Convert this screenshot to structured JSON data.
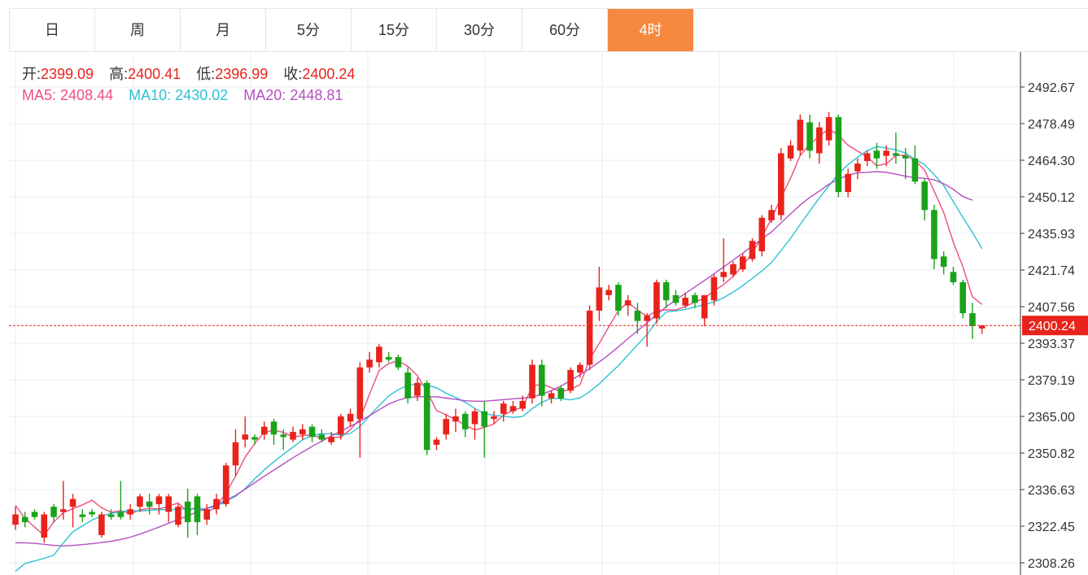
{
  "tabs": [
    {
      "label": "日",
      "active": false
    },
    {
      "label": "周",
      "active": false
    },
    {
      "label": "月",
      "active": false
    },
    {
      "label": "5分",
      "active": false
    },
    {
      "label": "15分",
      "active": false
    },
    {
      "label": "30分",
      "active": false
    },
    {
      "label": "60分",
      "active": false
    },
    {
      "label": "4时",
      "active": true
    }
  ],
  "ohlc": {
    "open_label": "开:",
    "open": "2399.09",
    "high_label": "高:",
    "high": "2400.41",
    "low_label": "低:",
    "low": "2396.99",
    "close_label": "收:",
    "close": "2400.24"
  },
  "ma": {
    "ma5_label": "MA5:",
    "ma5": "2408.44",
    "ma10_label": "MA10:",
    "ma10": "2430.02",
    "ma20_label": "MA20:",
    "ma20": "2448.81"
  },
  "colors": {
    "up": "#e8231b",
    "down": "#1aa31a",
    "ma5": "#ec4f7e",
    "ma10": "#2cc2d3",
    "ma20": "#b54fc2",
    "active_tab": "#f5893f",
    "price_tag": "#e8231b"
  },
  "chart_data": {
    "type": "candlestick",
    "y_ticks": [
      "2492.67",
      "2478.49",
      "2464.30",
      "2450.12",
      "2435.93",
      "2421.74",
      "2407.56",
      "2393.37",
      "2379.19",
      "2365.00",
      "2350.82",
      "2336.63",
      "2322.45",
      "2308.26"
    ],
    "ylim": [
      2304,
      2507
    ],
    "current_price": "2400.24",
    "grid": true,
    "candles": [
      [
        2323,
        2327,
        2321,
        2330
      ],
      [
        2326,
        2324,
        2322,
        2328
      ],
      [
        2328,
        2326,
        2325,
        2329
      ],
      [
        2318,
        2327,
        2316,
        2328
      ],
      [
        2330,
        2326,
        2324,
        2331
      ],
      [
        2328,
        2329,
        2325,
        2340
      ],
      [
        2330,
        2333,
        2322,
        2335
      ],
      [
        2327,
        2326,
        2324,
        2329
      ],
      [
        2328,
        2327,
        2326,
        2329
      ],
      [
        2319,
        2327,
        2318,
        2328
      ],
      [
        2327,
        2326,
        2325,
        2329
      ],
      [
        2328,
        2326,
        2325,
        2340
      ],
      [
        2327,
        2329,
        2325,
        2331
      ],
      [
        2330,
        2334,
        2328,
        2335
      ],
      [
        2332,
        2330,
        2327,
        2335
      ],
      [
        2331,
        2334,
        2327,
        2335
      ],
      [
        2328,
        2334,
        2324,
        2335
      ],
      [
        2323,
        2330,
        2322,
        2331
      ],
      [
        2332,
        2324,
        2318,
        2337
      ],
      [
        2334,
        2324,
        2319,
        2335
      ],
      [
        2325,
        2329,
        2323,
        2331
      ],
      [
        2329,
        2333,
        2327,
        2335
      ],
      [
        2331,
        2346,
        2330,
        2347
      ],
      [
        2346,
        2355,
        2342,
        2360
      ],
      [
        2356,
        2358,
        2353,
        2365
      ],
      [
        2357,
        2356,
        2354,
        2358
      ],
      [
        2358,
        2361,
        2356,
        2363
      ],
      [
        2363,
        2358,
        2354,
        2364
      ],
      [
        2358,
        2357,
        2352,
        2360
      ],
      [
        2356,
        2359,
        2355,
        2361
      ],
      [
        2358,
        2360,
        2356,
        2362
      ],
      [
        2361,
        2357,
        2355,
        2362
      ],
      [
        2358,
        2356,
        2355,
        2360
      ],
      [
        2355,
        2357,
        2354,
        2359
      ],
      [
        2358,
        2365,
        2356,
        2366
      ],
      [
        2363,
        2366,
        2361,
        2368
      ],
      [
        2364,
        2384,
        2349,
        2386
      ],
      [
        2384,
        2387,
        2382,
        2390
      ],
      [
        2386,
        2392,
        2384,
        2393
      ],
      [
        2388,
        2387,
        2386,
        2390
      ],
      [
        2388,
        2384,
        2383,
        2389
      ],
      [
        2382,
        2372,
        2370,
        2384
      ],
      [
        2373,
        2378,
        2371,
        2380
      ],
      [
        2378,
        2352,
        2350,
        2379
      ],
      [
        2354,
        2356,
        2352,
        2357
      ],
      [
        2358,
        2364,
        2356,
        2366
      ],
      [
        2363,
        2365,
        2359,
        2368
      ],
      [
        2366,
        2360,
        2357,
        2367
      ],
      [
        2362,
        2367,
        2356,
        2368
      ],
      [
        2367,
        2361,
        2349,
        2371
      ],
      [
        2364,
        2365,
        2362,
        2367
      ],
      [
        2366,
        2370,
        2363,
        2371
      ],
      [
        2367,
        2369,
        2366,
        2371
      ],
      [
        2368,
        2371,
        2367,
        2373
      ],
      [
        2372,
        2385,
        2370,
        2387
      ],
      [
        2385,
        2373,
        2369,
        2387
      ],
      [
        2372,
        2374,
        2370,
        2375
      ],
      [
        2376,
        2372,
        2371,
        2377
      ],
      [
        2375,
        2383,
        2374,
        2384
      ],
      [
        2382,
        2385,
        2380,
        2386
      ],
      [
        2385,
        2406,
        2383,
        2408
      ],
      [
        2406,
        2415,
        2402,
        2423
      ],
      [
        2412,
        2414,
        2410,
        2416
      ],
      [
        2416,
        2406,
        2404,
        2417
      ],
      [
        2408,
        2410,
        2404,
        2412
      ],
      [
        2406,
        2402,
        2397,
        2409
      ],
      [
        2402,
        2404,
        2392,
        2405
      ],
      [
        2403,
        2417,
        2401,
        2418
      ],
      [
        2417,
        2410,
        2407,
        2418
      ],
      [
        2412,
        2409,
        2408,
        2414
      ],
      [
        2408,
        2411,
        2407,
        2413
      ],
      [
        2412,
        2409,
        2407,
        2413
      ],
      [
        2403,
        2412,
        2400,
        2412
      ],
      [
        2410,
        2419,
        2408,
        2420
      ],
      [
        2419,
        2421,
        2417,
        2434
      ],
      [
        2420,
        2424,
        2419,
        2425
      ],
      [
        2422,
        2427,
        2421,
        2428
      ],
      [
        2426,
        2433,
        2425,
        2434
      ],
      [
        2429,
        2442,
        2427,
        2443
      ],
      [
        2441,
        2445,
        2440,
        2447
      ],
      [
        2443,
        2467,
        2441,
        2469
      ],
      [
        2465,
        2470,
        2464,
        2472
      ],
      [
        2468,
        2480,
        2466,
        2482
      ],
      [
        2479,
        2468,
        2465,
        2482
      ],
      [
        2467,
        2477,
        2463,
        2479
      ],
      [
        2472,
        2481,
        2470,
        2483
      ],
      [
        2481,
        2452,
        2450,
        2482
      ],
      [
        2452,
        2459,
        2450,
        2461
      ],
      [
        2460,
        2463,
        2457,
        2465
      ],
      [
        2464,
        2467,
        2462,
        2468
      ],
      [
        2468,
        2465,
        2461,
        2471
      ],
      [
        2466,
        2468,
        2462,
        2470
      ],
      [
        2467,
        2466,
        2463,
        2475
      ],
      [
        2466,
        2465,
        2457,
        2469
      ],
      [
        2465,
        2456,
        2455,
        2470
      ],
      [
        2456,
        2445,
        2441,
        2457
      ],
      [
        2445,
        2426,
        2422,
        2447
      ],
      [
        2427,
        2423,
        2420,
        2429
      ],
      [
        2421,
        2417,
        2416,
        2423
      ],
      [
        2417,
        2405,
        2403,
        2418
      ],
      [
        2405,
        2400,
        2395,
        2409
      ],
      [
        2399.09,
        2400.24,
        2396.99,
        2400.41
      ]
    ],
    "ma_series": [
      {
        "name": "MA5",
        "values": [
          2330.5,
          2325.4,
          2322.1,
          2318.9,
          2324.1,
          2327.7,
          2329.3,
          2330.7,
          2332.5,
          2329.6,
          2327.8,
          2328.5,
          2327.3,
          2328.7,
          2329.4,
          2329.1,
          2330.2,
          2331.4,
          2328.1,
          2330.2,
          2327.7,
          2330.1,
          2335.3,
          2341.8,
          2349.2,
          2354.5,
          2358.8,
          2359.7,
          2358.8,
          2357.1,
          2357.5,
          2357.9,
          2356.4,
          2356.9,
          2356.9,
          2359.9,
          2364.1,
          2373.6,
          2382.8,
          2385.5,
          2386.5,
          2384.4,
          2380.8,
          2374.7,
          2367.3,
          2365.6,
          2363.8,
          2361.6,
          2359.8,
          2360.7,
          2362.1,
          2365.5,
          2367.4,
          2368.5,
          2376.5,
          2377.7,
          2376.1,
          2374.6,
          2375.5,
          2377.3,
          2387.2,
          2393.3,
          2399.7,
          2406.0,
          2409.2,
          2406.2,
          2403.8,
          2405.9,
          2406.3,
          2406.3,
          2407.6,
          2409.4,
          2410.8,
          2413.7,
          2416.1,
          2419.3,
          2423.5,
          2428.3,
          2434.7,
          2441.6,
          2449.8,
          2457.4,
          2466.2,
          2470.4,
          2473.7,
          2476.4,
          2474.0,
          2470.1,
          2467.8,
          2465.6,
          2462.2,
          2462.9,
          2466.1,
          2466.3,
          2464.2,
          2460.5,
          2452.3,
          2444.0,
          2432.5,
          2423.0,
          2411.3,
          2408.4
        ]
      },
      {
        "name": "MA10",
        "values": [
          2305.0,
          2308.0,
          2309.0,
          2310.0,
          2311.2,
          2316.0,
          2320.3,
          2322.6,
          2324.8,
          2326.4,
          2327.4,
          2328.0,
          2328.6,
          2328.3,
          2328.6,
          2328.9,
          2328.8,
          2329.0,
          2329.2,
          2329.0,
          2329.3,
          2330.2,
          2332.1,
          2334.0,
          2337.0,
          2340.8,
          2344.3,
          2347.4,
          2350.3,
          2353.1,
          2355.9,
          2357.7,
          2358.3,
          2358.3,
          2357.7,
          2358.4,
          2361.1,
          2365.2,
          2369.2,
          2372.9,
          2375.3,
          2377.2,
          2377.5,
          2377.2,
          2376.1,
          2374.0,
          2372.3,
          2370.5,
          2368.1,
          2366.1,
          2365.4,
          2365.1,
          2364.6,
          2365.0,
          2368.0,
          2370.5,
          2372.0,
          2371.9,
          2371.4,
          2372.2,
          2374.6,
          2377.6,
          2381.2,
          2384.7,
          2388.7,
          2392.8,
          2396.8,
          2401.8,
          2405.5,
          2405.9,
          2406.5,
          2407.4,
          2408.4,
          2409.4,
          2411.0,
          2413.2,
          2415.7,
          2418.5,
          2421.4,
          2424.6,
          2429.3,
          2434.0,
          2439.4,
          2444.6,
          2449.6,
          2454.4,
          2459.1,
          2462.6,
          2465.5,
          2468.0,
          2469.6,
          2469.0,
          2468.3,
          2467.1,
          2464.7,
          2462.6,
          2458.7,
          2454.5,
          2448.3,
          2442.1,
          2436.3,
          2430.0
        ]
      },
      {
        "name": "MA20",
        "values": [
          2316.0,
          2316.0,
          2315.8,
          2315.4,
          2315.0,
          2314.8,
          2315.0,
          2315.3,
          2315.7,
          2316.1,
          2316.6,
          2317.3,
          2318.2,
          2319.4,
          2320.7,
          2322.1,
          2323.6,
          2325.0,
          2326.5,
          2328.0,
          2329.4,
          2330.8,
          2332.4,
          2334.4,
          2336.8,
          2339.3,
          2341.8,
          2344.2,
          2346.6,
          2349.0,
          2351.2,
          2353.4,
          2355.4,
          2357.4,
          2359.3,
          2361.2,
          2363.1,
          2365.3,
          2367.6,
          2369.8,
          2371.3,
          2372.3,
          2372.6,
          2372.7,
          2372.6,
          2372.1,
          2371.6,
          2371.1,
          2370.9,
          2370.9,
          2371.2,
          2371.5,
          2371.8,
          2372.1,
          2372.5,
          2373.6,
          2375.0,
          2376.8,
          2378.9,
          2381.1,
          2383.5,
          2386.1,
          2388.9,
          2392.0,
          2395.1,
          2398.2,
          2401.3,
          2404.5,
          2407.5,
          2410.1,
          2412.7,
          2415.2,
          2417.7,
          2420.3,
          2422.9,
          2425.6,
          2428.3,
          2431.0,
          2433.8,
          2436.5,
          2440.0,
          2443.6,
          2446.9,
          2449.9,
          2452.3,
          2455.0,
          2457.0,
          2458.5,
          2459.4,
          2459.6,
          2459.9,
          2459.6,
          2458.9,
          2458.1,
          2457.6,
          2457.3,
          2456.7,
          2455.2,
          2453.0,
          2450.2,
          2448.8
        ]
      }
    ]
  }
}
